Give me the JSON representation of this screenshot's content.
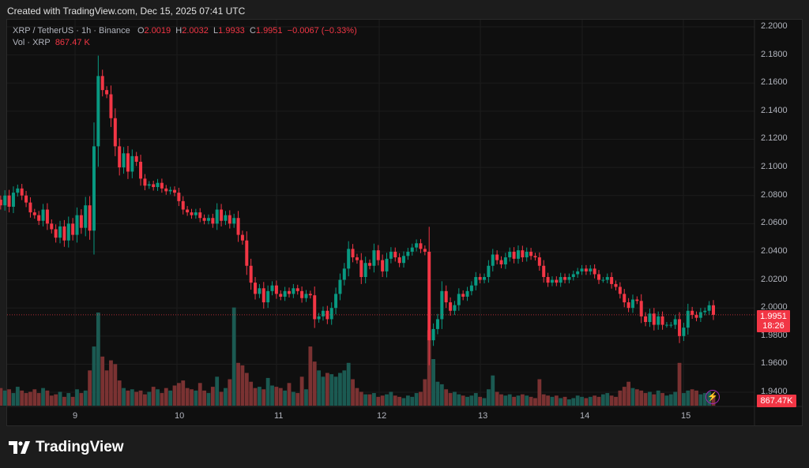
{
  "created_text": "Created with TradingView.com, Dec 15, 2025 07:41 UTC",
  "legend": {
    "symbol": "XRP / TetherUS · 1h · Binance",
    "o_label": "O",
    "o": "2.0019",
    "h_label": "H",
    "h": "2.0032",
    "l_label": "L",
    "l": "1.9933",
    "c_label": "C",
    "c": "1.9951",
    "change": "−0.0067 (−0.33%)",
    "vol_label": "Vol · XRP",
    "vol": "867.47 K"
  },
  "price_axis": [
    "2.2000",
    "2.1800",
    "2.1600",
    "2.1400",
    "2.1200",
    "2.1000",
    "2.0800",
    "2.0600",
    "2.0400",
    "2.0200",
    "2.0000",
    "1.9800",
    "1.9600",
    "1.9400"
  ],
  "time_axis": [
    "9",
    "10",
    "11",
    "12",
    "13",
    "14",
    "15"
  ],
  "last_price_tag": {
    "price": "1.9951",
    "countdown": "18:26"
  },
  "volume_tag": "867.47K",
  "logo_text": "TradingView",
  "colors": {
    "up": "#089981",
    "down": "#f23645",
    "up_vol": "#1b5a52",
    "down_vol": "#7a3232"
  },
  "chart_data": {
    "type": "candlestick",
    "interval": "1h",
    "ylim": [
      1.93,
      2.2
    ],
    "closes": [
      2.09,
      2.098,
      2.102,
      2.098,
      2.095,
      2.1,
      2.088,
      2.077,
      2.073,
      2.08,
      2.072,
      2.082,
      2.085,
      2.08,
      2.075,
      2.068,
      2.066,
      2.062,
      2.07,
      2.06,
      2.056,
      2.05,
      2.058,
      2.048,
      2.06,
      2.052,
      2.066,
      2.057,
      2.073,
      2.055,
      2.115,
      2.165,
      2.155,
      2.152,
      2.135,
      2.115,
      2.1,
      2.11,
      2.097,
      2.108,
      2.104,
      2.092,
      2.087,
      2.088,
      2.086,
      2.089,
      2.085,
      2.083,
      2.084,
      2.082,
      2.076,
      2.07,
      2.068,
      2.066,
      2.068,
      2.064,
      2.062,
      2.064,
      2.06,
      2.07,
      2.062,
      2.066,
      2.06,
      2.064,
      2.052,
      2.048,
      2.03,
      2.018,
      2.01,
      2.014,
      2.004,
      2.012,
      2.016,
      2.01,
      2.008,
      2.012,
      2.01,
      2.014,
      2.012,
      2.007,
      2.01,
      2.009,
      1.992,
      1.994,
      1.998,
      1.992,
      2.0,
      2.01,
      2.02,
      2.028,
      2.042,
      2.036,
      2.034,
      2.022,
      2.032,
      2.03,
      2.041,
      2.034,
      2.026,
      2.035,
      2.04,
      2.036,
      2.032,
      2.037,
      2.04,
      2.043,
      2.046,
      2.042,
      2.04,
      1.977,
      1.985,
      1.992,
      2.012,
      2.004,
      1.998,
      2.002,
      2.01,
      2.008,
      2.012,
      2.016,
      2.022,
      2.02,
      2.022,
      2.03,
      2.038,
      2.034,
      2.031,
      2.036,
      2.04,
      2.035,
      2.041,
      2.036,
      2.04,
      2.037,
      2.036,
      2.03,
      2.022,
      2.018,
      2.02,
      2.018,
      2.022,
      2.02,
      2.022,
      2.024,
      2.026,
      2.028,
      2.026,
      2.028,
      2.024,
      2.02,
      2.02,
      2.022,
      2.017,
      2.015,
      2.01,
      2.004,
      2.0,
      2.006,
      2.005,
      1.994,
      1.99,
      1.996,
      1.988,
      1.994,
      1.988,
      1.988,
      1.988,
      1.992,
      1.98,
      1.986,
      1.998,
      1.995,
      1.993,
      1.997,
      1.998,
      2.0019,
      1.9951
    ],
    "volumes_k": [
      1100,
      1600,
      1500,
      1200,
      1800,
      1400,
      4800,
      2800,
      1400,
      1200,
      1300,
      1000,
      1500,
      1200,
      1000,
      1100,
      1300,
      1000,
      1400,
      1200,
      800,
      900,
      1100,
      700,
      1000,
      700,
      1300,
      1000,
      1200,
      2800,
      4700,
      7400,
      3900,
      2800,
      3600,
      3300,
      2000,
      1400,
      1200,
      1300,
      1100,
      1200,
      900,
      1100,
      1500,
      1300,
      1000,
      1400,
      1200,
      1600,
      1800,
      2000,
      1400,
      1300,
      1200,
      1800,
      1200,
      1000,
      1500,
      2300,
      1100,
      1400,
      2100,
      7800,
      3400,
      3200,
      2600,
      1900,
      1400,
      1500,
      1300,
      2200,
      1600,
      1500,
      1400,
      1200,
      1800,
      1100,
      1000,
      2300,
      1300,
      4700,
      3500,
      2800,
      2300,
      2600,
      2500,
      2300,
      2600,
      2800,
      3400,
      2100,
      1400,
      1100,
      900,
      900,
      1000,
      700,
      800,
      900,
      1100,
      800,
      700,
      600,
      800,
      700,
      1000,
      1100,
      2100,
      6000,
      3700,
      1900,
      1700,
      1300,
      1000,
      1100,
      900,
      800,
      700,
      800,
      1000,
      700,
      600,
      1300,
      2400,
      1100,
      900,
      800,
      900,
      700,
      800,
      900,
      800,
      700,
      600,
      2100,
      900,
      800,
      700,
      800,
      600,
      700,
      500,
      600,
      800,
      700,
      600,
      700,
      800,
      700,
      900,
      1000,
      800,
      700,
      1200,
      1500,
      1900,
      1400,
      1300,
      1200,
      1000,
      1100,
      900,
      1200,
      1000,
      800,
      900,
      1100,
      3400,
      1000,
      1200,
      1300,
      1200,
      900,
      1000,
      1100,
      867.47
    ]
  }
}
